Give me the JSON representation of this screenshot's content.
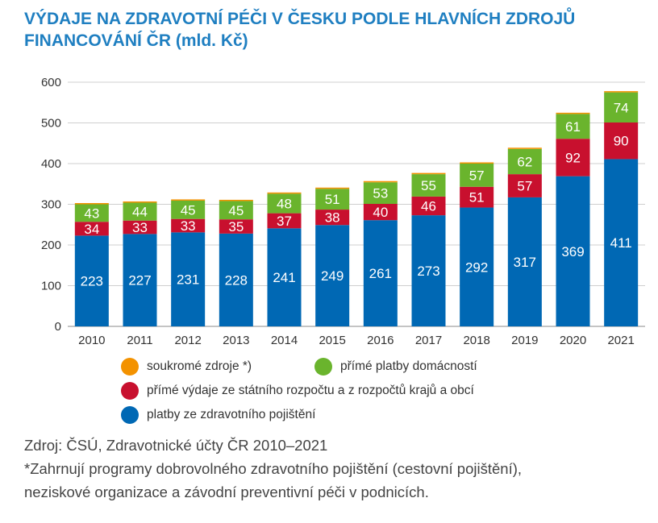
{
  "title_line1": "VÝDAJE NA ZDRAVOTNÍ PÉČI V ČESKU PODLE HLAVNÍCH ZDROJŮ",
  "title_line2": "FINANCOVÁNÍ ČR (mld. Kč)",
  "chart_data": {
    "type": "bar",
    "stacked": true,
    "categories": [
      "2010",
      "2011",
      "2012",
      "2013",
      "2014",
      "2015",
      "2016",
      "2017",
      "2018",
      "2019",
      "2020",
      "2021"
    ],
    "series": [
      {
        "name": "platby ze zdravotního pojištění",
        "color": "#0068b4",
        "values": [
          223,
          227,
          231,
          228,
          241,
          249,
          261,
          273,
          292,
          317,
          369,
          411
        ],
        "labels": true
      },
      {
        "name": "přímé výdaje ze státního rozpočtu a z rozpočtů krajů a obcí",
        "color": "#c8102e",
        "values": [
          34,
          33,
          33,
          35,
          37,
          38,
          40,
          46,
          51,
          57,
          92,
          90
        ],
        "labels": true
      },
      {
        "name": "přímé platby domácností",
        "color": "#6ab42d",
        "values": [
          43,
          44,
          45,
          45,
          48,
          51,
          53,
          55,
          57,
          62,
          61,
          74
        ],
        "labels": true
      },
      {
        "name": "soukromé zdroje *)",
        "color": "#f39200",
        "values": [
          3,
          3,
          3,
          3,
          3,
          3,
          3,
          3,
          3,
          3,
          3,
          3
        ],
        "labels": false
      }
    ],
    "ylim": [
      0,
      600
    ],
    "yticks": [
      0,
      100,
      200,
      300,
      400,
      500,
      600
    ],
    "grid": true,
    "legend_position": "bottom"
  },
  "legend": {
    "private": "soukromé zdroje *)",
    "households": "přímé platby domácností",
    "state": "přímé výdaje ze státního rozpočtu a z rozpočtů krajů a obcí",
    "insurance": "platby ze zdravotního pojištění"
  },
  "source": {
    "line1": "Zdroj: ČSÚ, Zdravotnické účty ČR 2010–2021",
    "line2": "*Zahrnují programy dobrovolného zdravotního pojištění (cestovní pojištění),",
    "line3": "neziskové organizace a závodní preventivní péči v podnicích."
  }
}
